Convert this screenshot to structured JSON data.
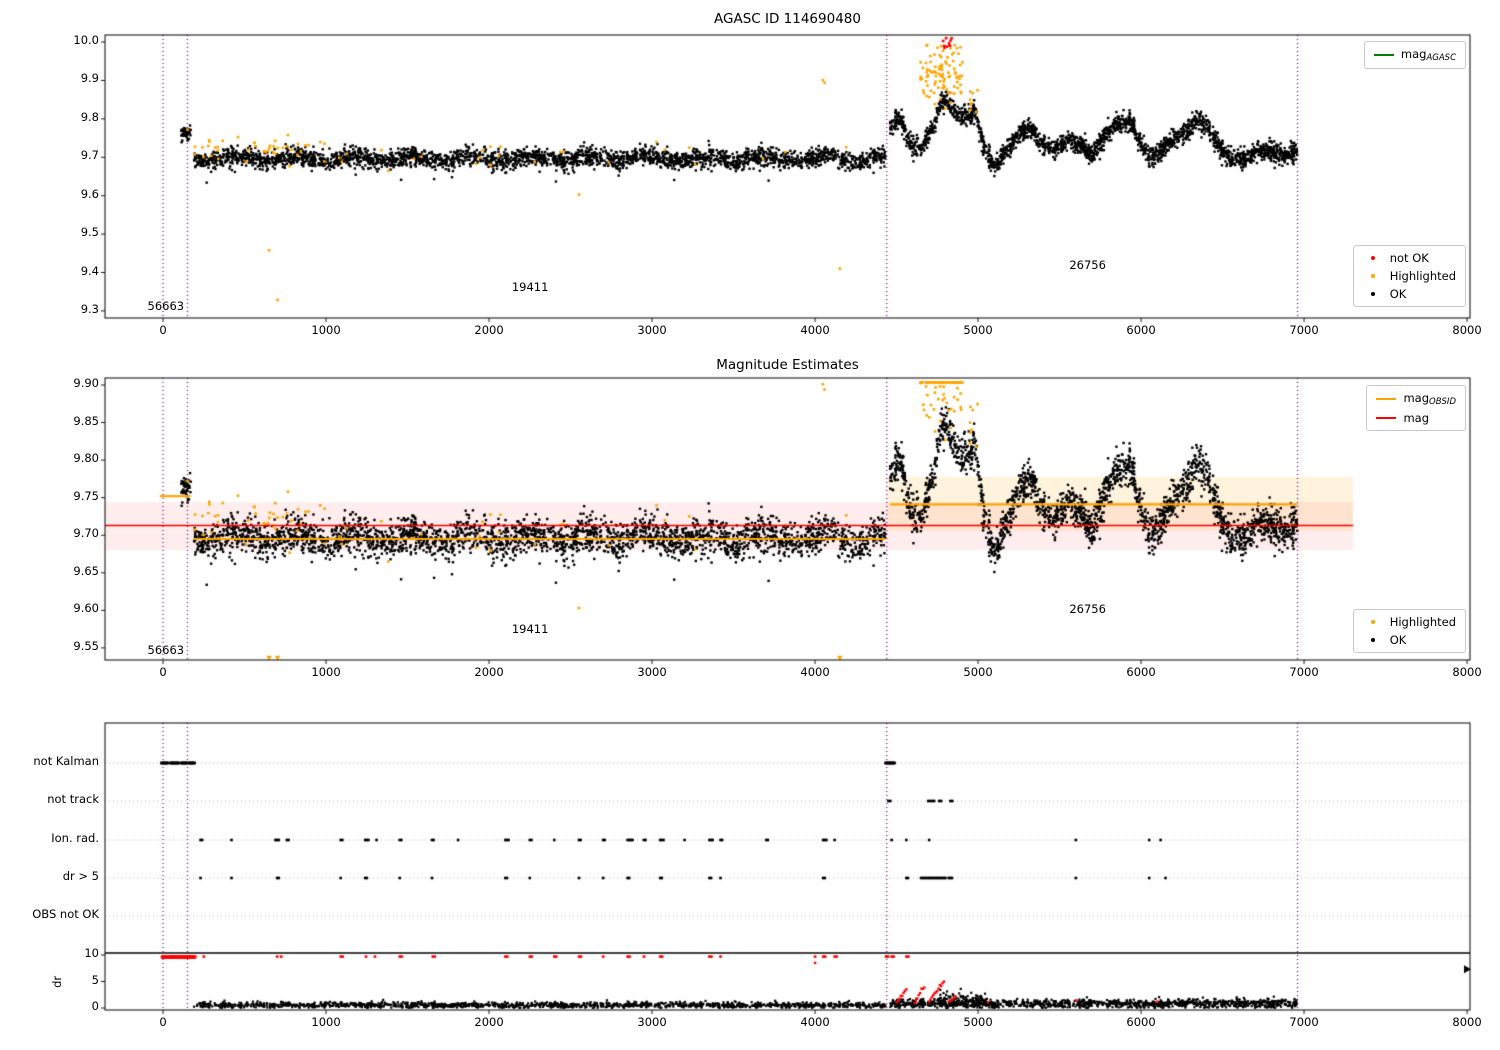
{
  "titles": {
    "top": "AGASC ID 114690480",
    "middle": "Magnitude Estimates"
  },
  "colors": {
    "ok": "#000000",
    "highlighted": "#ffa500",
    "not_ok": "#ff0000",
    "mag_agasc_line": "#008000",
    "mag_obsid_line": "#ffa500",
    "mag_line": "#ff0000",
    "vline": "#8b008b",
    "flag_grid": "#b0b0b0",
    "band_red": "rgba(255,0,0,0.07)",
    "band_orange": "rgba(255,166,0,0.13)"
  },
  "legends": {
    "top_line": {
      "entries": [
        {
          "swatch": "line",
          "color": "#008000",
          "label": "mag",
          "sub": "AGASC"
        }
      ]
    },
    "top_markers": {
      "entries": [
        {
          "swatch": "dot",
          "color": "#ff0000",
          "label": "not OK"
        },
        {
          "swatch": "dot",
          "color": "#ffa500",
          "label": "Highlighted"
        },
        {
          "swatch": "dot",
          "color": "#000000",
          "label": "OK"
        }
      ]
    },
    "mid_line": {
      "entries": [
        {
          "swatch": "line",
          "color": "#ffa500",
          "label": "mag",
          "sub": "OBSID"
        },
        {
          "swatch": "line",
          "color": "#ff0000",
          "label": "mag",
          "sub": ""
        }
      ]
    },
    "mid_markers": {
      "entries": [
        {
          "swatch": "dot",
          "color": "#ffa500",
          "label": "Highlighted"
        },
        {
          "swatch": "dot",
          "color": "#000000",
          "label": "OK"
        }
      ]
    }
  },
  "chart_data": {
    "type": "scatter",
    "xlim": [
      -356,
      8018
    ],
    "xticks": [
      0,
      1000,
      2000,
      3000,
      4000,
      5000,
      6000,
      7000,
      8000
    ],
    "xtick_labels": [
      "0",
      "1000",
      "2000",
      "3000",
      "4000",
      "5000",
      "6000",
      "7000",
      "8000"
    ],
    "vlines": [
      0,
      150,
      4440,
      6960
    ],
    "panels": {
      "top": {
        "title": "AGASC ID 114690480",
        "ylim": [
          9.2816,
          10.0183
        ],
        "yticks": [
          10.0,
          9.9,
          9.8,
          9.7,
          9.6,
          9.5,
          9.4,
          9.3
        ],
        "ytick_labels": [
          "10.0",
          "9.9",
          "9.8",
          "9.7",
          "9.6",
          "9.5",
          "9.4",
          "9.3"
        ],
        "annotations": [
          {
            "text": "56663",
            "x": -95,
            "y": 9.307
          },
          {
            "text": "19411",
            "x": 2140,
            "y": 9.357
          },
          {
            "text": "26756",
            "x": 5560,
            "y": 9.415
          }
        ]
      },
      "middle": {
        "title": "Magnitude Estimates",
        "ylim": [
          9.5339,
          9.9093
        ],
        "yticks": [
          9.9,
          9.85,
          9.8,
          9.75,
          9.7,
          9.65,
          9.6,
          9.55
        ],
        "ytick_labels": [
          "9.90",
          "9.85",
          "9.80",
          "9.75",
          "9.70",
          "9.65",
          "9.60",
          "9.55"
        ],
        "annotations": [
          {
            "text": "56663",
            "x": -95,
            "y": 9.544
          },
          {
            "text": "19411",
            "x": 2140,
            "y": 9.572
          },
          {
            "text": "26756",
            "x": 5560,
            "y": 9.599
          }
        ],
        "lines": {
          "mag": {
            "value": 9.713
          },
          "mag_obsid": [
            {
              "x0": -20,
              "x1": 168,
              "value": 9.752
            },
            {
              "x0": 190,
              "x1": 4432,
              "value": 9.695
            },
            {
              "x0": 4460,
              "x1": 6958,
              "value": 9.741
            }
          ]
        },
        "bands": [
          {
            "x0": -356,
            "x1": 7300,
            "y0": 9.68,
            "y1": 9.744,
            "color": "rgba(255,0,0,0.07)"
          },
          {
            "x0": 4440,
            "x1": 7300,
            "y0": 9.706,
            "y1": 9.778,
            "color": "rgba(255,166,0,0.13)"
          }
        ]
      },
      "flags": {
        "rows": [
          "not Kalman",
          "not track",
          "Ion. rad.",
          "dr > 5",
          "OBS not OK"
        ],
        "not_kalman_runs": [
          [
            -10,
            30
          ],
          [
            45,
            100
          ],
          [
            112,
            150
          ],
          [
            158,
            196
          ],
          [
            4432,
            4488
          ]
        ],
        "not_track_clusters": [
          [
            4450,
            2
          ],
          [
            4695,
            4
          ],
          [
            4762,
            2
          ],
          [
            4830,
            2
          ]
        ],
        "ion_rad_clusters": [
          [
            230,
            2
          ],
          [
            420,
            1
          ],
          [
            690,
            3
          ],
          [
            760,
            2
          ],
          [
            1090,
            2
          ],
          [
            1240,
            3
          ],
          [
            1310,
            1
          ],
          [
            1452,
            2
          ],
          [
            1650,
            2
          ],
          [
            1810,
            1
          ],
          [
            2100,
            3
          ],
          [
            2250,
            2
          ],
          [
            2400,
            1
          ],
          [
            2552,
            2
          ],
          [
            2700,
            2
          ],
          [
            2850,
            4
          ],
          [
            2950,
            2
          ],
          [
            3050,
            3
          ],
          [
            3200,
            1
          ],
          [
            3352,
            3
          ],
          [
            3420,
            2
          ],
          [
            3700,
            2
          ],
          [
            4050,
            3
          ],
          [
            4120,
            1
          ],
          [
            4470,
            1
          ],
          [
            4560,
            1
          ],
          [
            4700,
            1
          ],
          [
            5600,
            1
          ],
          [
            6050,
            1
          ],
          [
            6120,
            1
          ]
        ],
        "dr5_clusters": [
          [
            230,
            1
          ],
          [
            420,
            1
          ],
          [
            700,
            2
          ],
          [
            1090,
            1
          ],
          [
            1240,
            2
          ],
          [
            1452,
            1
          ],
          [
            1650,
            1
          ],
          [
            2100,
            2
          ],
          [
            2250,
            1
          ],
          [
            2552,
            1
          ],
          [
            2700,
            1
          ],
          [
            2850,
            2
          ],
          [
            3050,
            2
          ],
          [
            3352,
            2
          ],
          [
            3420,
            1
          ],
          [
            4050,
            2
          ],
          [
            4560,
            2
          ],
          [
            4650,
            16
          ],
          [
            4820,
            3
          ],
          [
            5600,
            1
          ],
          [
            6050,
            1
          ],
          [
            6150,
            1
          ]
        ],
        "obs_not_ok_clusters": []
      },
      "dr": {
        "ylabel": "dr",
        "yticks": [
          10,
          5,
          0
        ],
        "ytick_labels": [
          "10",
          "5",
          "0"
        ],
        "hline": 10,
        "black_segments": [
          {
            "x0": 190,
            "x1": 4432,
            "n": 1400,
            "mean": 0.55,
            "std": 0.28,
            "clip": [
              0.05,
              2.2
            ]
          },
          {
            "x0": 4460,
            "x1": 6958,
            "n": 1100,
            "mean": 0.8,
            "std": 0.4,
            "clip": [
              0.05,
              3.6
            ]
          },
          {
            "x0": 4750,
            "x1": 5060,
            "n": 110,
            "mean": 1.5,
            "std": 0.7,
            "clip": [
              0.1,
              3.6
            ]
          }
        ],
        "red_run": {
          "x0": -5,
          "x1": 196,
          "step": 3,
          "v": 9.62
        },
        "red_singles_at10": [
          250,
          700,
          725,
          1090,
          1245,
          1300,
          1452,
          1655,
          2100,
          2250,
          2400,
          2552,
          2700,
          2850,
          2950,
          3050,
          3352,
          3420,
          4000,
          4050,
          4120,
          4435,
          4470,
          4560
        ],
        "red_ramps": [
          {
            "x0": 4500,
            "x1": 4560,
            "v0": 1.0,
            "v1": 3.5,
            "n": 8
          },
          {
            "x0": 4610,
            "x1": 4670,
            "v0": 1.0,
            "v1": 4.2,
            "n": 8
          },
          {
            "x0": 4700,
            "x1": 4790,
            "v0": 1.2,
            "v1": 5.0,
            "n": 12
          },
          {
            "x0": 4820,
            "x1": 4862,
            "v0": 1.0,
            "v1": 2.2,
            "n": 5
          }
        ],
        "red_points": [
          [
            5600,
            1.4
          ],
          [
            6100,
            1.2
          ],
          [
            4000,
            8.5
          ],
          [
            5060,
            1.1
          ]
        ],
        "edge_marker": {
          "x": 8000,
          "v": 7.3
        }
      }
    },
    "series": {
      "ok": [
        {
          "x0": 112,
          "x1": 170,
          "n": 42,
          "mean": 9.762,
          "std": 0.01
        },
        {
          "x0": 190,
          "x1": 4432,
          "n": 2700,
          "mean": 9.697,
          "std": 0.012,
          "wave": 0.007,
          "period": 360,
          "dip_frac": 0.03,
          "dip": 0.04
        },
        {
          "x0": 4460,
          "x1": 6958,
          "n": 2000,
          "std": 0.013,
          "pts": [
            [
              4460,
              9.775
            ],
            [
              4520,
              9.8
            ],
            [
              4580,
              9.74
            ],
            [
              4650,
              9.72
            ],
            [
              4720,
              9.78
            ],
            [
              4790,
              9.85
            ],
            [
              4850,
              9.82
            ],
            [
              4920,
              9.8
            ],
            [
              4980,
              9.82
            ],
            [
              5040,
              9.72
            ],
            [
              5100,
              9.675
            ],
            [
              5180,
              9.72
            ],
            [
              5260,
              9.76
            ],
            [
              5330,
              9.775
            ],
            [
              5400,
              9.73
            ],
            [
              5480,
              9.72
            ],
            [
              5560,
              9.745
            ],
            [
              5640,
              9.73
            ],
            [
              5700,
              9.7
            ],
            [
              5780,
              9.76
            ],
            [
              5860,
              9.79
            ],
            [
              5930,
              9.8
            ],
            [
              6000,
              9.735
            ],
            [
              6060,
              9.7
            ],
            [
              6130,
              9.72
            ],
            [
              6200,
              9.75
            ],
            [
              6280,
              9.77
            ],
            [
              6350,
              9.8
            ],
            [
              6420,
              9.77
            ],
            [
              6490,
              9.72
            ],
            [
              6560,
              9.69
            ],
            [
              6640,
              9.7
            ],
            [
              6720,
              9.72
            ],
            [
              6800,
              9.715
            ],
            [
              6880,
              9.7
            ],
            [
              6958,
              9.72
            ]
          ]
        }
      ],
      "highlighted": [
        {
          "x0": 190,
          "x1": 1000,
          "n": 42,
          "mean": 9.722,
          "std": 0.016
        },
        {
          "x0": 1000,
          "x1": 4430,
          "n": 26,
          "mean": 9.701,
          "std": 0.02
        },
        {
          "x0": 4640,
          "x1": 4905,
          "n": 95,
          "mean": 9.915,
          "std": 0.045
        },
        {
          "x0": 4940,
          "x1": 5000,
          "n": 8,
          "mean": 9.85,
          "std": 0.02
        }
      ],
      "highlighted_points": [
        [
          650,
          9.458
        ],
        [
          702,
          9.329
        ],
        [
          2552,
          9.603
        ],
        [
          4048,
          9.901
        ],
        [
          4058,
          9.894
        ],
        [
          4152,
          9.41
        ],
        [
          150,
          9.772
        ]
      ],
      "not_ok": [
        {
          "x0": 4782,
          "x1": 4838,
          "n": 10,
          "mean": 10.0,
          "std": 0.012
        }
      ]
    }
  }
}
